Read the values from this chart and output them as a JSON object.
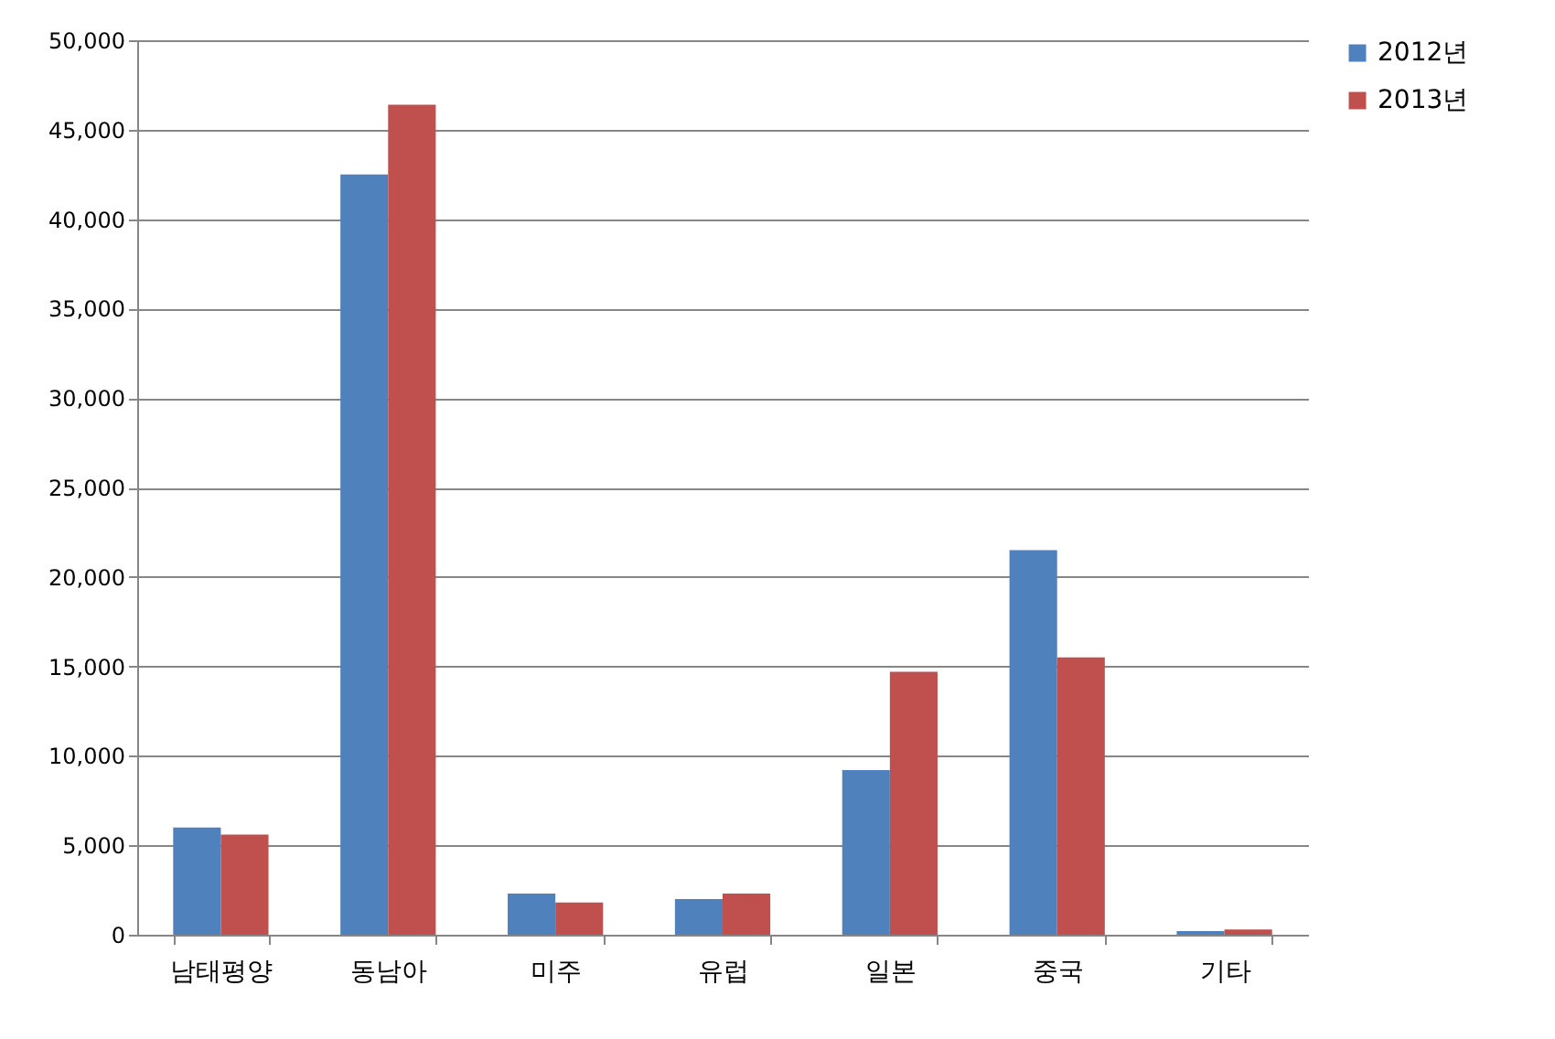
{
  "chart_data": {
    "type": "bar",
    "categories": [
      "남태평양",
      "동남아",
      "미주",
      "유럽",
      "일본",
      "중국",
      "기타"
    ],
    "series": [
      {
        "name": "2012년",
        "color": "#4f81bd",
        "values": [
          6000,
          42500,
          2300,
          2000,
          9200,
          21500,
          200
        ]
      },
      {
        "name": "2013년",
        "color": "#c0504d",
        "values": [
          5600,
          46400,
          1800,
          2300,
          14700,
          15500,
          300
        ]
      }
    ],
    "ylim": [
      0,
      50000
    ],
    "yticks": [
      {
        "value": 0,
        "label": "0"
      },
      {
        "value": 5000,
        "label": "5,000"
      },
      {
        "value": 10000,
        "label": "10,000"
      },
      {
        "value": 15000,
        "label": "15,000"
      },
      {
        "value": 20000,
        "label": "20,000"
      },
      {
        "value": 25000,
        "label": "25,000"
      },
      {
        "value": 30000,
        "label": "30,000"
      },
      {
        "value": 35000,
        "label": "35,000"
      },
      {
        "value": 40000,
        "label": "40,000"
      },
      {
        "value": 45000,
        "label": "45,000"
      },
      {
        "value": 50000,
        "label": "50,000"
      }
    ],
    "grid": "y",
    "legend": "right"
  }
}
